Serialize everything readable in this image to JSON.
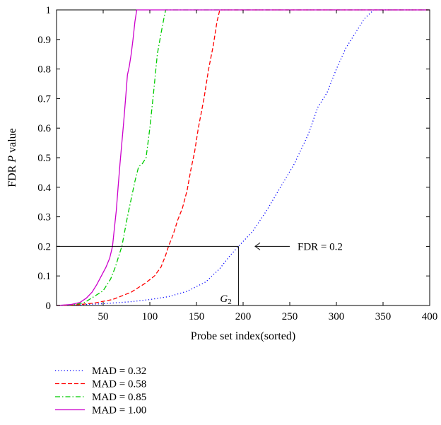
{
  "chart_data": {
    "type": "line",
    "xlabel": "Probe set index(sorted)",
    "ylabel_main": "FDR ",
    "ylabel_italic": "P",
    "ylabel_tail": " value",
    "xlim": [
      0,
      400
    ],
    "ylim": [
      0,
      1
    ],
    "x_ticks": [
      50,
      100,
      150,
      200,
      250,
      300,
      350,
      400
    ],
    "y_ticks": [
      0,
      0.1,
      0.2,
      0.3,
      0.4,
      0.5,
      0.6,
      0.7,
      0.8,
      0.9,
      1
    ],
    "x_tick_labels": [
      "50",
      "100",
      "150",
      "200",
      "250",
      "300",
      "350",
      "400"
    ],
    "y_tick_labels": [
      "0",
      "0.1",
      "0.2",
      "0.3",
      "0.4",
      "0.5",
      "0.6",
      "0.7",
      "0.8",
      "0.9",
      "1"
    ],
    "grid": false,
    "legend_position": "below",
    "series": [
      {
        "name": "MAD = 0.32",
        "color": "#0000ff",
        "dash": "dotted",
        "points": [
          [
            0,
            0
          ],
          [
            20,
            0.002
          ],
          [
            50,
            0.006
          ],
          [
            80,
            0.013
          ],
          [
            100,
            0.02
          ],
          [
            120,
            0.03
          ],
          [
            140,
            0.048
          ],
          [
            160,
            0.08
          ],
          [
            175,
            0.125
          ],
          [
            185,
            0.165
          ],
          [
            195,
            0.2
          ],
          [
            210,
            0.25
          ],
          [
            225,
            0.32
          ],
          [
            240,
            0.4
          ],
          [
            255,
            0.48
          ],
          [
            270,
            0.58
          ],
          [
            280,
            0.67
          ],
          [
            290,
            0.72
          ],
          [
            300,
            0.8
          ],
          [
            310,
            0.87
          ],
          [
            320,
            0.92
          ],
          [
            330,
            0.97
          ],
          [
            340,
            1
          ],
          [
            400,
            1
          ]
        ]
      },
      {
        "name": "MAD = 0.58",
        "color": "#ff0000",
        "dash": "dashed",
        "points": [
          [
            0,
            0
          ],
          [
            20,
            0.002
          ],
          [
            40,
            0.008
          ],
          [
            60,
            0.02
          ],
          [
            80,
            0.045
          ],
          [
            95,
            0.075
          ],
          [
            105,
            0.1
          ],
          [
            112,
            0.13
          ],
          [
            117,
            0.17
          ],
          [
            120,
            0.2
          ],
          [
            125,
            0.24
          ],
          [
            130,
            0.29
          ],
          [
            135,
            0.33
          ],
          [
            140,
            0.39
          ],
          [
            144,
            0.46
          ],
          [
            148,
            0.52
          ],
          [
            152,
            0.6
          ],
          [
            158,
            0.7
          ],
          [
            163,
            0.8
          ],
          [
            168,
            0.88
          ],
          [
            172,
            0.96
          ],
          [
            175,
            1
          ],
          [
            400,
            1
          ]
        ]
      },
      {
        "name": "MAD = 0.85",
        "color": "#00cc00",
        "dash": "dashdot",
        "points": [
          [
            0,
            0
          ],
          [
            20,
            0.003
          ],
          [
            30,
            0.01
          ],
          [
            40,
            0.03
          ],
          [
            50,
            0.05
          ],
          [
            58,
            0.09
          ],
          [
            63,
            0.13
          ],
          [
            66,
            0.16
          ],
          [
            70,
            0.2
          ],
          [
            73,
            0.25
          ],
          [
            76,
            0.3
          ],
          [
            80,
            0.36
          ],
          [
            84,
            0.42
          ],
          [
            88,
            0.47
          ],
          [
            92,
            0.48
          ],
          [
            96,
            0.5
          ],
          [
            100,
            0.6
          ],
          [
            104,
            0.72
          ],
          [
            108,
            0.85
          ],
          [
            112,
            0.92
          ],
          [
            115,
            0.97
          ],
          [
            117,
            1
          ],
          [
            400,
            1
          ]
        ]
      },
      {
        "name": "MAD = 1.00",
        "color": "#cc00cc",
        "dash": "solid",
        "points": [
          [
            0,
            0
          ],
          [
            15,
            0.003
          ],
          [
            25,
            0.01
          ],
          [
            32,
            0.025
          ],
          [
            38,
            0.045
          ],
          [
            43,
            0.07
          ],
          [
            48,
            0.1
          ],
          [
            53,
            0.13
          ],
          [
            57,
            0.16
          ],
          [
            60,
            0.2
          ],
          [
            62,
            0.26
          ],
          [
            64,
            0.32
          ],
          [
            66,
            0.4
          ],
          [
            68,
            0.48
          ],
          [
            70,
            0.55
          ],
          [
            72,
            0.62
          ],
          [
            74,
            0.7
          ],
          [
            76,
            0.78
          ],
          [
            78,
            0.81
          ],
          [
            80,
            0.85
          ],
          [
            82,
            0.9
          ],
          [
            84,
            0.96
          ],
          [
            86,
            1
          ],
          [
            400,
            1
          ]
        ]
      }
    ],
    "annotation": {
      "text": "FDR = 0.2",
      "threshold_y": 0.2,
      "g_label": "G",
      "g_subscript": "2",
      "g_x": 195
    }
  }
}
